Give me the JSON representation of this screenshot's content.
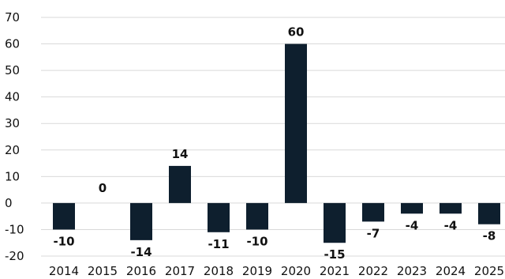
{
  "chart_data": {
    "type": "bar",
    "title": "",
    "xlabel": "",
    "ylabel": "",
    "categories": [
      "2014",
      "2015",
      "2016",
      "2017",
      "2018",
      "2019",
      "2020",
      "2021",
      "2022",
      "2023",
      "2024",
      "2025"
    ],
    "values": [
      -10,
      0,
      -14,
      14,
      -11,
      -10,
      60,
      -15,
      -7,
      -4,
      -4,
      -8
    ],
    "data_labels": [
      "-10",
      "0",
      "-14",
      "14",
      "-11",
      "-10",
      "60",
      "-15",
      "-7",
      "-4",
      "-4",
      "-8"
    ],
    "yticks": [
      "70",
      "60",
      "50",
      "40",
      "30",
      "20",
      "10",
      "0",
      "-10",
      "-20"
    ],
    "ylim": [
      -20,
      70
    ],
    "grid": true,
    "bar_color": "#0e1f2e"
  }
}
